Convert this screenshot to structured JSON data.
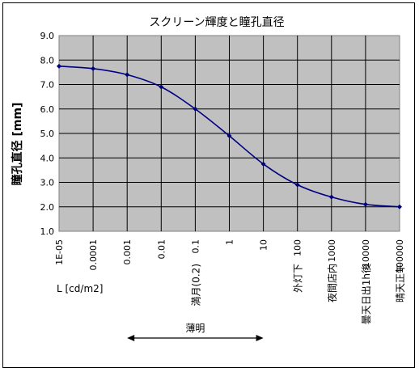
{
  "chart_data": {
    "type": "line",
    "title": "スクリーン輝度と瞳孔直径",
    "ylabel": "瞳孔直径 [mm]",
    "xlabel": "L [cd/m2]",
    "x_scale": "log",
    "ylim": [
      1.0,
      9.0
    ],
    "grid": true,
    "legend": "none",
    "y_ticks": [
      "1.0",
      "2.0",
      "3.0",
      "4.0",
      "5.0",
      "6.0",
      "7.0",
      "8.0",
      "9.0"
    ],
    "x_ticks": [
      "1E-05",
      "0.0001",
      "0.001",
      "0.01",
      "0.1",
      "1",
      "10",
      "100",
      "1000",
      "10000",
      "100000"
    ],
    "series": [
      {
        "color": "#000080",
        "x": [
          1e-05,
          0.0001,
          0.001,
          0.01,
          0.1,
          1,
          10,
          100,
          1000,
          10000,
          100000
        ],
        "y": [
          7.75,
          7.65,
          7.4,
          6.9,
          6.0,
          4.9,
          3.75,
          2.9,
          2.4,
          2.1,
          2.0
        ]
      }
    ],
    "annotations": [
      {
        "text": "満月(0.2)",
        "x": 0.1
      },
      {
        "text": "外灯下",
        "x": 100
      },
      {
        "text": "夜間店内",
        "x": 1000
      },
      {
        "text": "曇天日出1h後",
        "x": 10000
      },
      {
        "text": "晴天正午",
        "x": 100000
      }
    ],
    "range_marker": {
      "label": "薄明",
      "from": 0.001,
      "to": 10
    },
    "plot_background": "#c0c0c0"
  }
}
